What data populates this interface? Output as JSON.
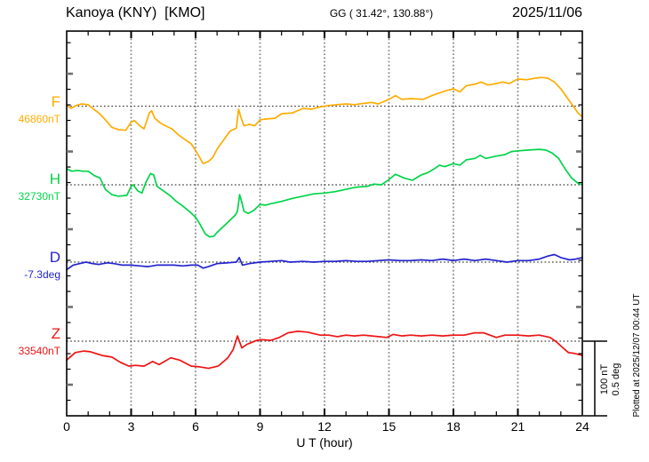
{
  "header": {
    "station": "Kanoya (KNY)  [KMO]",
    "coords": "GG ( 31.42°, 130.88°)",
    "date": "2025/11/06"
  },
  "axis": {
    "xlabel": "U T (hour)",
    "x_ticks": [
      0,
      3,
      6,
      9,
      12,
      15,
      18,
      21,
      24
    ],
    "grid_hours": [
      3,
      6,
      9,
      12,
      15,
      18,
      21
    ],
    "x_range": [
      0,
      24
    ]
  },
  "scale_bar": {
    "label_nt": "100 nT",
    "label_deg": "0.5 deg"
  },
  "plotted_at": "Plotted at 2025/12/07 00:44 UT",
  "chart_data": {
    "type": "line",
    "title": "Kanoya (KNY) [KMO] magnetogram 2025/11/06",
    "xlabel": "U T (hour)",
    "x_range": [
      0,
      24
    ],
    "grid": "vertical dotted every 3 h, dotted horizontal baseline per component",
    "scale": {
      "nT_per_bar": 100,
      "deg_per_bar": 0.5
    },
    "series": [
      {
        "name": "F",
        "unit": "nT",
        "baseline": 46860,
        "value_label": "46860nT",
        "color": "#ffac00",
        "points": [
          [
            0,
            46862
          ],
          [
            0.2,
            46857
          ],
          [
            0.45,
            46861
          ],
          [
            0.7,
            46863
          ],
          [
            1,
            46862
          ],
          [
            1.25,
            46856
          ],
          [
            1.5,
            46851
          ],
          [
            1.8,
            46842
          ],
          [
            2.1,
            46832
          ],
          [
            2.4,
            46829
          ],
          [
            2.75,
            46828
          ],
          [
            3,
            46839
          ],
          [
            3.15,
            46841
          ],
          [
            3.4,
            46834
          ],
          [
            3.6,
            46830
          ],
          [
            3.85,
            46851
          ],
          [
            3.95,
            46854
          ],
          [
            4.1,
            46844
          ],
          [
            4.35,
            46838
          ],
          [
            4.6,
            46834
          ],
          [
            4.9,
            46830
          ],
          [
            5.2,
            46822
          ],
          [
            5.5,
            46816
          ],
          [
            5.8,
            46810
          ],
          [
            6.05,
            46799
          ],
          [
            6.35,
            46784
          ],
          [
            6.6,
            46787
          ],
          [
            6.8,
            46792
          ],
          [
            7,
            46803
          ],
          [
            7.3,
            46815
          ],
          [
            7.6,
            46827
          ],
          [
            7.9,
            46831
          ],
          [
            8,
            46856
          ],
          [
            8.1,
            46846
          ],
          [
            8.25,
            46834
          ],
          [
            8.5,
            46836
          ],
          [
            8.75,
            46834
          ],
          [
            9,
            46842
          ],
          [
            9.3,
            46843
          ],
          [
            9.7,
            46844
          ],
          [
            10,
            46850
          ],
          [
            10.5,
            46851
          ],
          [
            11,
            46857
          ],
          [
            11.4,
            46856
          ],
          [
            11.8,
            46859
          ],
          [
            12.2,
            46861
          ],
          [
            12.6,
            46862
          ],
          [
            13,
            46863
          ],
          [
            13.4,
            46862
          ],
          [
            13.9,
            46864
          ],
          [
            14.2,
            46865
          ],
          [
            14.5,
            46863
          ],
          [
            15,
            46869
          ],
          [
            15.3,
            46874
          ],
          [
            15.6,
            46869
          ],
          [
            16,
            46870
          ],
          [
            16.6,
            46869
          ],
          [
            17,
            46874
          ],
          [
            17.4,
            46878
          ],
          [
            17.7,
            46881
          ],
          [
            18,
            46883
          ],
          [
            18.3,
            46879
          ],
          [
            18.6,
            46887
          ],
          [
            19,
            46889
          ],
          [
            19.3,
            46892
          ],
          [
            19.6,
            46888
          ],
          [
            20,
            46890
          ],
          [
            20.3,
            46892
          ],
          [
            20.6,
            46890
          ],
          [
            21,
            46896
          ],
          [
            21.4,
            46895
          ],
          [
            21.8,
            46897
          ],
          [
            22.1,
            46898
          ],
          [
            22.4,
            46897
          ],
          [
            22.7,
            46892
          ],
          [
            23,
            46883
          ],
          [
            23.3,
            46871
          ],
          [
            23.6,
            46859
          ],
          [
            23.8,
            46851
          ],
          [
            24,
            46846
          ]
        ]
      },
      {
        "name": "H",
        "unit": "nT",
        "baseline": 32730,
        "value_label": "32730nT",
        "color": "#00d44a",
        "points": [
          [
            0,
            32751
          ],
          [
            0.25,
            32748
          ],
          [
            0.5,
            32749
          ],
          [
            0.75,
            32748
          ],
          [
            1,
            32748
          ],
          [
            1.3,
            32742
          ],
          [
            1.55,
            32739
          ],
          [
            1.8,
            32724
          ],
          [
            2.1,
            32717
          ],
          [
            2.4,
            32715
          ],
          [
            2.8,
            32716
          ],
          [
            3,
            32728
          ],
          [
            3.1,
            32730
          ],
          [
            3.3,
            32722
          ],
          [
            3.5,
            32719
          ],
          [
            3.7,
            32734
          ],
          [
            3.9,
            32745
          ],
          [
            4.05,
            32743
          ],
          [
            4.2,
            32728
          ],
          [
            4.5,
            32722
          ],
          [
            4.8,
            32716
          ],
          [
            5.1,
            32708
          ],
          [
            5.4,
            32702
          ],
          [
            5.7,
            32695
          ],
          [
            6,
            32687
          ],
          [
            6.2,
            32678
          ],
          [
            6.45,
            32665
          ],
          [
            6.65,
            32661
          ],
          [
            6.85,
            32662
          ],
          [
            7,
            32667
          ],
          [
            7.3,
            32675
          ],
          [
            7.6,
            32683
          ],
          [
            7.85,
            32690
          ],
          [
            7.95,
            32695
          ],
          [
            8.05,
            32717
          ],
          [
            8.15,
            32707
          ],
          [
            8.25,
            32695
          ],
          [
            8.45,
            32692
          ],
          [
            8.7,
            32696
          ],
          [
            9,
            32704
          ],
          [
            9.25,
            32703
          ],
          [
            9.5,
            32705
          ],
          [
            10,
            32708
          ],
          [
            10.5,
            32712
          ],
          [
            11,
            32715
          ],
          [
            11.5,
            32718
          ],
          [
            12,
            32719
          ],
          [
            12.5,
            32721
          ],
          [
            13,
            32724
          ],
          [
            13.5,
            32727
          ],
          [
            14,
            32728
          ],
          [
            14.3,
            32731
          ],
          [
            14.65,
            32730
          ],
          [
            15,
            32737
          ],
          [
            15.3,
            32744
          ],
          [
            15.7,
            32739
          ],
          [
            16.1,
            32736
          ],
          [
            16.5,
            32743
          ],
          [
            16.8,
            32746
          ],
          [
            17.1,
            32751
          ],
          [
            17.35,
            32756
          ],
          [
            17.6,
            32754
          ],
          [
            18,
            32758
          ],
          [
            18.3,
            32756
          ],
          [
            18.6,
            32763
          ],
          [
            19,
            32765
          ],
          [
            19.25,
            32769
          ],
          [
            19.5,
            32765
          ],
          [
            20,
            32768
          ],
          [
            20.4,
            32770
          ],
          [
            20.7,
            32774
          ],
          [
            21,
            32775
          ],
          [
            21.5,
            32776
          ],
          [
            22,
            32777
          ],
          [
            22.3,
            32776
          ],
          [
            22.6,
            32772
          ],
          [
            22.9,
            32765
          ],
          [
            23.2,
            32751
          ],
          [
            23.5,
            32739
          ],
          [
            23.8,
            32732
          ],
          [
            24,
            32730
          ]
        ]
      },
      {
        "name": "D",
        "unit": "deg",
        "baseline": -7.3,
        "value_label": "-7.3deg",
        "color": "#2323cf",
        "points": [
          [
            0,
            -7.35
          ],
          [
            0.3,
            -7.32
          ],
          [
            0.6,
            -7.31
          ],
          [
            0.9,
            -7.3
          ],
          [
            1.2,
            -7.31
          ],
          [
            1.5,
            -7.315
          ],
          [
            1.9,
            -7.305
          ],
          [
            2.2,
            -7.31
          ],
          [
            2.6,
            -7.32
          ],
          [
            3,
            -7.32
          ],
          [
            3.4,
            -7.325
          ],
          [
            3.8,
            -7.33
          ],
          [
            4.2,
            -7.32
          ],
          [
            4.6,
            -7.32
          ],
          [
            5,
            -7.32
          ],
          [
            5.4,
            -7.325
          ],
          [
            5.8,
            -7.32
          ],
          [
            6.1,
            -7.32
          ],
          [
            6.35,
            -7.34
          ],
          [
            6.6,
            -7.33
          ],
          [
            7,
            -7.31
          ],
          [
            7.5,
            -7.305
          ],
          [
            7.9,
            -7.3
          ],
          [
            8.03,
            -7.27
          ],
          [
            8.18,
            -7.32
          ],
          [
            8.5,
            -7.31
          ],
          [
            9,
            -7.3
          ],
          [
            9.5,
            -7.295
          ],
          [
            10,
            -7.29
          ],
          [
            10.4,
            -7.3
          ],
          [
            11,
            -7.295
          ],
          [
            11.5,
            -7.3
          ],
          [
            12,
            -7.295
          ],
          [
            12.5,
            -7.295
          ],
          [
            13,
            -7.29
          ],
          [
            13.5,
            -7.295
          ],
          [
            14,
            -7.295
          ],
          [
            14.5,
            -7.29
          ],
          [
            15,
            -7.285
          ],
          [
            15.5,
            -7.29
          ],
          [
            16,
            -7.29
          ],
          [
            16.5,
            -7.285
          ],
          [
            17,
            -7.29
          ],
          [
            17.5,
            -7.28
          ],
          [
            18,
            -7.29
          ],
          [
            18.5,
            -7.28
          ],
          [
            19,
            -7.29
          ],
          [
            19.5,
            -7.28
          ],
          [
            20,
            -7.29
          ],
          [
            20.5,
            -7.3
          ],
          [
            21,
            -7.29
          ],
          [
            21.5,
            -7.29
          ],
          [
            22,
            -7.28
          ],
          [
            22.4,
            -7.26
          ],
          [
            22.7,
            -7.25
          ],
          [
            23,
            -7.27
          ],
          [
            23.4,
            -7.285
          ],
          [
            23.7,
            -7.28
          ],
          [
            24,
            -7.27
          ]
        ]
      },
      {
        "name": "Z",
        "unit": "nT",
        "baseline": 33540,
        "value_label": "33540nT",
        "color": "#ee1313",
        "points": [
          [
            0,
            33515
          ],
          [
            0.4,
            33525
          ],
          [
            0.8,
            33527
          ],
          [
            1.1,
            33526
          ],
          [
            1.65,
            33521
          ],
          [
            2.1,
            33519
          ],
          [
            2.5,
            33512
          ],
          [
            2.9,
            33507
          ],
          [
            3.2,
            33508
          ],
          [
            3.6,
            33507
          ],
          [
            4,
            33513
          ],
          [
            4.3,
            33509
          ],
          [
            4.85,
            33518
          ],
          [
            5.25,
            33515
          ],
          [
            5.8,
            33507
          ],
          [
            6.2,
            33506
          ],
          [
            6.6,
            33504
          ],
          [
            7.05,
            33507
          ],
          [
            7.5,
            33518
          ],
          [
            7.75,
            33529
          ],
          [
            7.95,
            33547
          ],
          [
            8.15,
            33531
          ],
          [
            8.4,
            33536
          ],
          [
            8.85,
            33541
          ],
          [
            9.1,
            33542
          ],
          [
            9.5,
            33541
          ],
          [
            9.9,
            33545
          ],
          [
            10.3,
            33551
          ],
          [
            10.75,
            33553
          ],
          [
            11.2,
            33552
          ],
          [
            11.8,
            33548
          ],
          [
            12.2,
            33548
          ],
          [
            12.6,
            33546
          ],
          [
            13,
            33548
          ],
          [
            13.4,
            33547
          ],
          [
            13.8,
            33548
          ],
          [
            14.2,
            33547
          ],
          [
            14.9,
            33545
          ],
          [
            15.2,
            33549
          ],
          [
            15.6,
            33547
          ],
          [
            16,
            33548
          ],
          [
            16.5,
            33547
          ],
          [
            17,
            33548
          ],
          [
            17.5,
            33547
          ],
          [
            18,
            33548
          ],
          [
            18.5,
            33548
          ],
          [
            19,
            33551
          ],
          [
            19.4,
            33551
          ],
          [
            20,
            33545
          ],
          [
            20.4,
            33548
          ],
          [
            21,
            33548
          ],
          [
            21.5,
            33547
          ],
          [
            22,
            33548
          ],
          [
            22.5,
            33545
          ],
          [
            22.8,
            33539
          ],
          [
            23.1,
            33531
          ],
          [
            23.35,
            33525
          ],
          [
            23.6,
            33524
          ],
          [
            24,
            33521
          ]
        ]
      }
    ]
  }
}
